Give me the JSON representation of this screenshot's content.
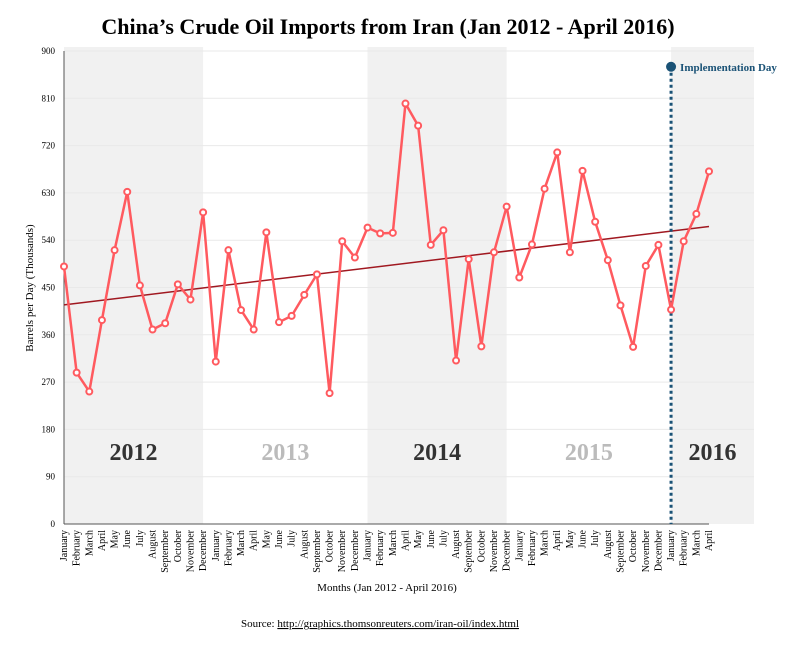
{
  "chart_data": {
    "type": "line",
    "title": "China’s Crude Oil Imports from Iran (Jan 2012 - April 2016)",
    "xlabel": "Months (Jan 2012 - April 2016)",
    "ylabel": "Barrels per Day (Thousands)",
    "ylim": [
      0,
      900
    ],
    "yticks": [
      0,
      90,
      180,
      270,
      360,
      450,
      540,
      630,
      720,
      810,
      900
    ],
    "grid": true,
    "categories": [
      "January",
      "February",
      "March",
      "April",
      "May",
      "June",
      "July",
      "August",
      "September",
      "October",
      "November",
      "December",
      "January",
      "February",
      "March",
      "April",
      "May",
      "June",
      "July",
      "August",
      "September",
      "October",
      "November",
      "December",
      "January",
      "February",
      "March",
      "April",
      "May",
      "June",
      "July",
      "August",
      "September",
      "October",
      "November",
      "December",
      "January",
      "February",
      "March",
      "April",
      "May",
      "June",
      "July",
      "August",
      "September",
      "October",
      "November",
      "December",
      "January",
      "February",
      "March",
      "April"
    ],
    "series": [
      {
        "values": [
          490,
          288,
          252,
          388,
          521,
          632,
          454,
          370,
          382,
          456,
          427,
          593,
          309,
          521,
          407,
          370,
          555,
          384,
          396,
          436,
          475,
          249,
          538,
          507,
          564,
          553,
          554,
          800,
          758,
          531,
          559,
          311,
          504,
          338,
          517,
          604,
          469,
          532,
          638,
          707,
          517,
          672,
          575,
          502,
          416,
          337,
          491,
          531,
          408,
          538,
          590,
          671
        ],
        "color": "#ff5a5f"
      }
    ],
    "trendline": {
      "start": 417,
      "end": 566,
      "color": "#a01820"
    },
    "years": [
      {
        "label": "2012",
        "shaded": true
      },
      {
        "label": "2013",
        "shaded": false
      },
      {
        "label": "2014",
        "shaded": true
      },
      {
        "label": "2015",
        "shaded": false
      },
      {
        "label": "2016",
        "shaded": true
      }
    ],
    "annotation": {
      "label": "Implementation Day",
      "month_index": 48,
      "value": 870,
      "color": "#1a5276"
    },
    "source": {
      "prefix": "Source: ",
      "link": "http://graphics.thomsonreuters.com/iran-oil/index.html"
    }
  }
}
